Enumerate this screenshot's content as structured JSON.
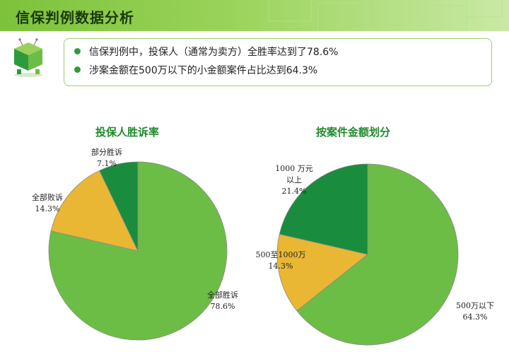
{
  "header": {
    "title": "信保判例数据分析"
  },
  "summary": {
    "bullets": [
      "信保判例中，投保人（通常为卖方）全胜率达到了78.6%",
      "涉案金额在500万以下的小金额案件占比达到64.3%"
    ]
  },
  "colors": {
    "accent": "#7dc23b",
    "green_light": "#6cbd45",
    "green_dark": "#1a8c3e",
    "yellow": "#e9b734"
  },
  "logo_icon": "cube-mascot-icon",
  "chart_data": [
    {
      "type": "pie",
      "title": "投保人胜诉率",
      "slices": [
        {
          "label": "全部胜诉",
          "value": 78.6,
          "display": "78.6%",
          "color": "#6cbd45"
        },
        {
          "label": "全部败诉",
          "value": 14.3,
          "display": "14.3%",
          "color": "#e9b734"
        },
        {
          "label": "部分胜诉",
          "value": 7.1,
          "display": "7.1%",
          "color": "#1a8c3e"
        }
      ]
    },
    {
      "type": "pie",
      "title": "按案件金额划分",
      "slices": [
        {
          "label": "500万以下",
          "value": 64.3,
          "display": "64.3%",
          "color": "#6cbd45"
        },
        {
          "label": "500至1000万",
          "value": 14.3,
          "display": "14.3%",
          "color": "#e9b734"
        },
        {
          "label": "1000 万元以上",
          "value": 21.4,
          "display": "21.4%",
          "color": "#1a8c3e"
        }
      ]
    }
  ]
}
